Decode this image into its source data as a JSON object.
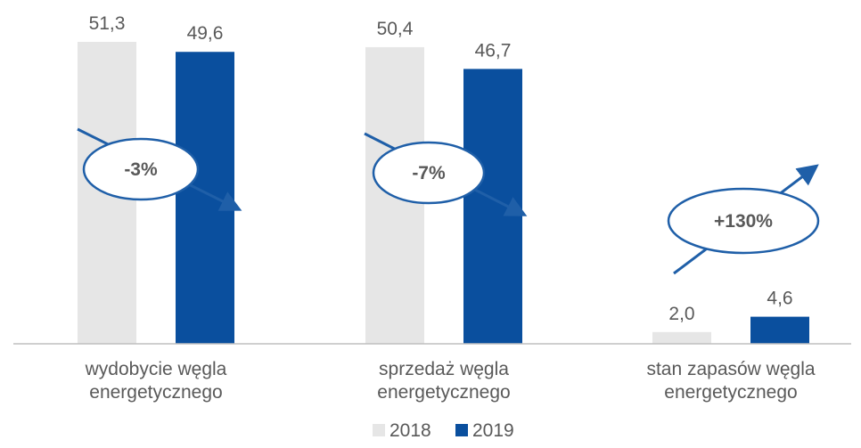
{
  "chart_data": {
    "type": "bar",
    "categories": [
      [
        "wydobycie węgla",
        "energetycznego"
      ],
      [
        "sprzedaż węgla",
        "energetycznego"
      ],
      [
        "stan zapasów węgla",
        "energetycznego"
      ]
    ],
    "series": [
      {
        "name": "2018",
        "values": [
          51.3,
          50.4,
          2.0
        ],
        "labels": [
          "51,3",
          "50,4",
          "2,0"
        ],
        "color": "#e6e6e6"
      },
      {
        "name": "2019",
        "values": [
          49.6,
          46.7,
          4.6
        ],
        "labels": [
          "49,6",
          "46,7",
          "4,6"
        ],
        "color": "#0a4f9e"
      }
    ],
    "annotations": [
      "-3%",
      "-7%",
      "+130%"
    ],
    "annotation_trend": [
      "down",
      "down",
      "up"
    ],
    "ylim": [
      0,
      51.3
    ],
    "grid": false,
    "legend_position": "bottom",
    "accent_color": "#1f5fa8",
    "axis_color": "#bfbfbf",
    "text_color": "#595959"
  }
}
